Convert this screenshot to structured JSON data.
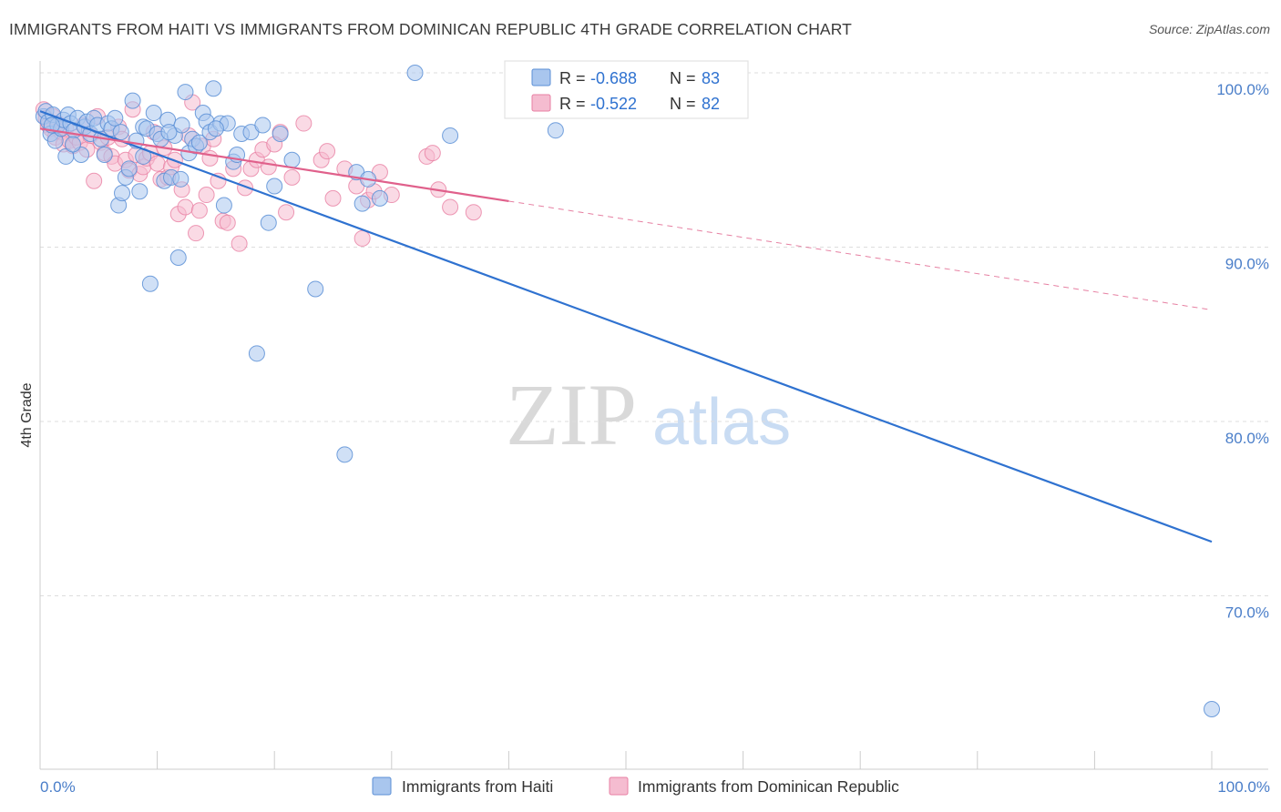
{
  "header": {
    "title": "IMMIGRANTS FROM HAITI VS IMMIGRANTS FROM DOMINICAN REPUBLIC 4TH GRADE CORRELATION CHART",
    "source": "Source: ZipAtlas.com"
  },
  "watermark": {
    "zip": "ZIP",
    "atlas": "atlas"
  },
  "colors": {
    "haiti": "#5b8fd6",
    "haiti_fill": "#a9c6ee",
    "haiti_line": "#2f72d0",
    "dominican": "#e87fa3",
    "dominican_fill": "#f5bcd0",
    "dominican_line": "#e0608b",
    "axis_label": "#4a7ec9",
    "grid": "#dddddd"
  },
  "legend": {
    "haiti": {
      "r_label": "R = ",
      "r_value": "-0.688",
      "n_label": "N = ",
      "n_value": "83"
    },
    "dominican": {
      "r_label": "R = ",
      "r_value": "-0.522",
      "n_label": "N = ",
      "n_value": "82"
    }
  },
  "chart_data": {
    "type": "scatter",
    "title": "IMMIGRANTS FROM HAITI VS IMMIGRANTS FROM DOMINICAN REPUBLIC 4TH GRADE CORRELATION CHART",
    "xlabel": "",
    "ylabel": "4th Grade",
    "xlim": [
      0,
      100
    ],
    "ylim": [
      61.5,
      101.5
    ],
    "x_ticks": [
      "0.0%",
      "100.0%"
    ],
    "y_ticks": [
      {
        "value": 100,
        "label": "100.0%"
      },
      {
        "value": 90,
        "label": "90.0%"
      },
      {
        "value": 80,
        "label": "80.0%"
      },
      {
        "value": 70,
        "label": "70.0%"
      }
    ],
    "grid": true,
    "legend_position": "bottom",
    "series": [
      {
        "name": "Immigrants from Haiti",
        "r": -0.688,
        "n": 83,
        "trend": {
          "x0": 0,
          "y0": 97.8,
          "x1": 100,
          "y1": 73.1,
          "dashed_from": null
        },
        "points": [
          [
            0.3,
            97.5
          ],
          [
            0.5,
            97.8
          ],
          [
            0.7,
            97.2
          ],
          [
            0.9,
            96.5
          ],
          [
            1.1,
            97.6
          ],
          [
            1.3,
            96.1
          ],
          [
            1.5,
            97.0
          ],
          [
            1.8,
            96.8
          ],
          [
            2.0,
            97.3
          ],
          [
            2.2,
            95.2
          ],
          [
            2.4,
            97.6
          ],
          [
            2.6,
            97.1
          ],
          [
            2.9,
            96.7
          ],
          [
            3.2,
            97.4
          ],
          [
            3.5,
            95.3
          ],
          [
            3.8,
            96.9
          ],
          [
            4.0,
            97.2
          ],
          [
            4.3,
            96.5
          ],
          [
            4.6,
            97.4
          ],
          [
            4.9,
            97.0
          ],
          [
            5.2,
            96.2
          ],
          [
            5.5,
            95.3
          ],
          [
            5.8,
            97.1
          ],
          [
            6.1,
            96.8
          ],
          [
            6.4,
            97.4
          ],
          [
            6.7,
            92.4
          ],
          [
            7.0,
            93.1
          ],
          [
            7.3,
            94.0
          ],
          [
            7.6,
            94.5
          ],
          [
            7.9,
            98.4
          ],
          [
            8.2,
            96.1
          ],
          [
            8.5,
            93.2
          ],
          [
            8.8,
            96.9
          ],
          [
            9.1,
            96.8
          ],
          [
            9.4,
            87.9
          ],
          [
            9.7,
            97.7
          ],
          [
            10.0,
            96.5
          ],
          [
            10.3,
            96.2
          ],
          [
            10.6,
            93.8
          ],
          [
            10.9,
            97.3
          ],
          [
            11.2,
            94.0
          ],
          [
            11.5,
            96.4
          ],
          [
            11.8,
            89.4
          ],
          [
            12.1,
            97.0
          ],
          [
            12.4,
            98.9
          ],
          [
            12.7,
            95.4
          ],
          [
            13.0,
            96.2
          ],
          [
            13.3,
            95.8
          ],
          [
            13.6,
            96.0
          ],
          [
            13.9,
            97.7
          ],
          [
            14.2,
            97.2
          ],
          [
            14.5,
            96.6
          ],
          [
            14.8,
            99.1
          ],
          [
            15.4,
            97.1
          ],
          [
            15.7,
            92.4
          ],
          [
            16.0,
            97.1
          ],
          [
            16.5,
            94.9
          ],
          [
            16.8,
            95.3
          ],
          [
            17.2,
            96.5
          ],
          [
            18.0,
            96.6
          ],
          [
            18.5,
            83.9
          ],
          [
            19.0,
            97.0
          ],
          [
            19.5,
            91.4
          ],
          [
            20.0,
            93.5
          ],
          [
            20.5,
            96.5
          ],
          [
            21.5,
            95.0
          ],
          [
            23.5,
            87.6
          ],
          [
            26.0,
            78.1
          ],
          [
            27.0,
            94.3
          ],
          [
            27.5,
            92.5
          ],
          [
            28.0,
            93.9
          ],
          [
            29.0,
            92.8
          ],
          [
            32.0,
            100.0
          ],
          [
            35.0,
            96.4
          ],
          [
            44.0,
            96.7
          ],
          [
            100.0,
            63.5
          ],
          [
            1.0,
            97.0
          ],
          [
            2.8,
            95.9
          ],
          [
            6.9,
            96.6
          ],
          [
            8.8,
            95.2
          ],
          [
            12.0,
            93.9
          ],
          [
            15.0,
            96.8
          ],
          [
            11.0,
            96.6
          ]
        ]
      },
      {
        "name": "Immigrants from Dominican Republic",
        "r": -0.522,
        "n": 82,
        "trend": {
          "x0": 0,
          "y0": 96.8,
          "x1": 100,
          "y1": 86.4,
          "dashed_from": 40
        },
        "points": [
          [
            0.3,
            97.9
          ],
          [
            0.5,
            97.4
          ],
          [
            0.7,
            97.0
          ],
          [
            0.9,
            96.8
          ],
          [
            1.1,
            97.5
          ],
          [
            1.3,
            96.3
          ],
          [
            1.5,
            97.1
          ],
          [
            1.8,
            96.6
          ],
          [
            2.0,
            95.9
          ],
          [
            2.2,
            96.8
          ],
          [
            2.5,
            96.1
          ],
          [
            2.8,
            95.8
          ],
          [
            3.1,
            96.3
          ],
          [
            3.4,
            96.0
          ],
          [
            3.7,
            97.0
          ],
          [
            4.0,
            95.6
          ],
          [
            4.3,
            96.4
          ],
          [
            4.6,
            93.8
          ],
          [
            4.9,
            97.5
          ],
          [
            5.2,
            96.0
          ],
          [
            5.5,
            95.4
          ],
          [
            5.8,
            96.3
          ],
          [
            6.1,
            95.2
          ],
          [
            6.4,
            94.8
          ],
          [
            6.7,
            96.9
          ],
          [
            7.0,
            96.2
          ],
          [
            7.3,
            95.0
          ],
          [
            7.6,
            94.4
          ],
          [
            7.9,
            97.9
          ],
          [
            8.2,
            95.3
          ],
          [
            8.5,
            94.2
          ],
          [
            8.8,
            94.6
          ],
          [
            9.1,
            95.1
          ],
          [
            9.4,
            95.4
          ],
          [
            9.7,
            96.6
          ],
          [
            10.0,
            94.8
          ],
          [
            10.3,
            93.9
          ],
          [
            10.6,
            95.7
          ],
          [
            10.9,
            94.0
          ],
          [
            11.2,
            94.6
          ],
          [
            11.5,
            95.0
          ],
          [
            11.8,
            91.9
          ],
          [
            12.1,
            93.3
          ],
          [
            12.4,
            92.3
          ],
          [
            12.7,
            96.4
          ],
          [
            13.0,
            98.3
          ],
          [
            13.3,
            90.8
          ],
          [
            13.6,
            92.1
          ],
          [
            13.9,
            95.8
          ],
          [
            14.2,
            93.0
          ],
          [
            14.5,
            95.1
          ],
          [
            14.8,
            96.2
          ],
          [
            15.2,
            93.8
          ],
          [
            15.6,
            91.5
          ],
          [
            16.0,
            91.4
          ],
          [
            16.5,
            94.5
          ],
          [
            17.0,
            90.2
          ],
          [
            17.5,
            93.4
          ],
          [
            18.0,
            94.5
          ],
          [
            18.5,
            95.0
          ],
          [
            19.0,
            95.6
          ],
          [
            19.5,
            94.6
          ],
          [
            20.5,
            96.6
          ],
          [
            21.0,
            92.0
          ],
          [
            21.5,
            94.0
          ],
          [
            22.5,
            97.1
          ],
          [
            24.0,
            95.0
          ],
          [
            24.5,
            95.5
          ],
          [
            25.0,
            92.8
          ],
          [
            26.0,
            94.5
          ],
          [
            27.0,
            93.5
          ],
          [
            28.0,
            92.7
          ],
          [
            28.5,
            93.2
          ],
          [
            29.0,
            94.3
          ],
          [
            30.0,
            93.0
          ],
          [
            33.0,
            95.2
          ],
          [
            33.5,
            95.4
          ],
          [
            34.0,
            93.3
          ],
          [
            35.0,
            92.3
          ],
          [
            37.0,
            92.0
          ],
          [
            27.5,
            90.5
          ],
          [
            20.0,
            95.9
          ]
        ]
      }
    ]
  },
  "axes": {
    "ylabel": "4th Grade",
    "x_left": "0.0%",
    "x_right": "100.0%"
  },
  "bottom_legend": {
    "haiti": "Immigrants from Haiti",
    "dominican": "Immigrants from Dominican Republic"
  }
}
